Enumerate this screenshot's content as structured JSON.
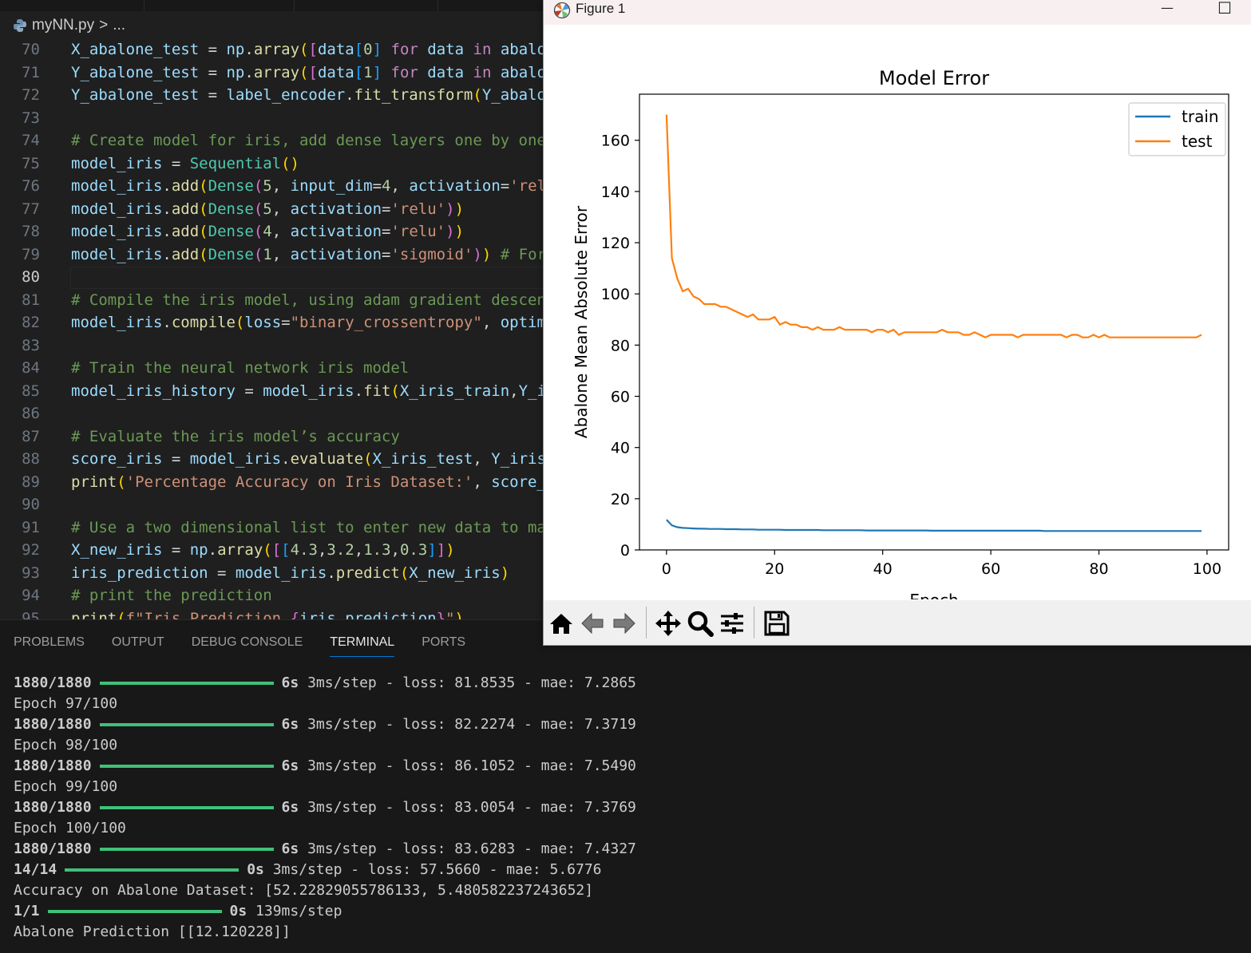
{
  "editor": {
    "breadcrumb": {
      "file": "myNN.py",
      "sep": ">",
      "rest": "..."
    },
    "current_line": "80",
    "lines": [
      {
        "n": "70",
        "t": [
          [
            "v",
            "X_abalone_test"
          ],
          [
            "o",
            " = "
          ],
          [
            "v",
            "np"
          ],
          [
            "o",
            "."
          ],
          [
            "f",
            "array"
          ],
          [
            "b1",
            "("
          ],
          [
            "b2",
            "["
          ],
          [
            "v",
            "data"
          ],
          [
            "b3",
            "["
          ],
          [
            "n",
            "0"
          ],
          [
            "b3",
            "]"
          ],
          [
            "o",
            " "
          ],
          [
            "k",
            "for"
          ],
          [
            "o",
            " "
          ],
          [
            "v",
            "data"
          ],
          [
            "o",
            " "
          ],
          [
            "k",
            "in"
          ],
          [
            "o",
            " "
          ],
          [
            "v",
            "abalone_test_data"
          ]
        ]
      },
      {
        "n": "71",
        "t": [
          [
            "v",
            "Y_abalone_test"
          ],
          [
            "o",
            " = "
          ],
          [
            "v",
            "np"
          ],
          [
            "o",
            "."
          ],
          [
            "f",
            "array"
          ],
          [
            "b1",
            "("
          ],
          [
            "b2",
            "["
          ],
          [
            "v",
            "data"
          ],
          [
            "b3",
            "["
          ],
          [
            "n",
            "1"
          ],
          [
            "b3",
            "]"
          ],
          [
            "o",
            " "
          ],
          [
            "k",
            "for"
          ],
          [
            "o",
            " "
          ],
          [
            "v",
            "data"
          ],
          [
            "o",
            " "
          ],
          [
            "k",
            "in"
          ],
          [
            "o",
            " "
          ],
          [
            "v",
            "abalone_test_data"
          ]
        ]
      },
      {
        "n": "72",
        "t": [
          [
            "v",
            "Y_abalone_test"
          ],
          [
            "o",
            " = "
          ],
          [
            "v",
            "label_encoder"
          ],
          [
            "o",
            "."
          ],
          [
            "f",
            "fit_transform"
          ],
          [
            "b1",
            "("
          ],
          [
            "v",
            "Y_abalone_test"
          ]
        ]
      },
      {
        "n": "73",
        "t": []
      },
      {
        "n": "74",
        "t": [
          [
            "c",
            "# Create model for iris, add dense layers one by one"
          ]
        ]
      },
      {
        "n": "75",
        "t": [
          [
            "v",
            "model_iris"
          ],
          [
            "o",
            " = "
          ],
          [
            "cl",
            "Sequential"
          ],
          [
            "b1",
            "()"
          ]
        ]
      },
      {
        "n": "76",
        "t": [
          [
            "v",
            "model_iris"
          ],
          [
            "o",
            "."
          ],
          [
            "f",
            "add"
          ],
          [
            "b1",
            "("
          ],
          [
            "cl",
            "Dense"
          ],
          [
            "b2",
            "("
          ],
          [
            "n",
            "5"
          ],
          [
            "o",
            ", "
          ],
          [
            "v",
            "input_dim"
          ],
          [
            "o",
            "="
          ],
          [
            "n",
            "4"
          ],
          [
            "o",
            ", "
          ],
          [
            "v",
            "activation"
          ],
          [
            "o",
            "="
          ],
          [
            "s",
            "'relu'"
          ]
        ]
      },
      {
        "n": "77",
        "t": [
          [
            "v",
            "model_iris"
          ],
          [
            "o",
            "."
          ],
          [
            "f",
            "add"
          ],
          [
            "b1",
            "("
          ],
          [
            "cl",
            "Dense"
          ],
          [
            "b2",
            "("
          ],
          [
            "n",
            "5"
          ],
          [
            "o",
            ", "
          ],
          [
            "v",
            "activation"
          ],
          [
            "o",
            "="
          ],
          [
            "s",
            "'relu'"
          ],
          [
            "b2",
            ")"
          ],
          [
            "b1",
            ")"
          ]
        ]
      },
      {
        "n": "78",
        "t": [
          [
            "v",
            "model_iris"
          ],
          [
            "o",
            "."
          ],
          [
            "f",
            "add"
          ],
          [
            "b1",
            "("
          ],
          [
            "cl",
            "Dense"
          ],
          [
            "b2",
            "("
          ],
          [
            "n",
            "4"
          ],
          [
            "o",
            ", "
          ],
          [
            "v",
            "activation"
          ],
          [
            "o",
            "="
          ],
          [
            "s",
            "'relu'"
          ],
          [
            "b2",
            ")"
          ],
          [
            "b1",
            ")"
          ]
        ]
      },
      {
        "n": "79",
        "t": [
          [
            "v",
            "model_iris"
          ],
          [
            "o",
            "."
          ],
          [
            "f",
            "add"
          ],
          [
            "b1",
            "("
          ],
          [
            "cl",
            "Dense"
          ],
          [
            "b2",
            "("
          ],
          [
            "n",
            "1"
          ],
          [
            "o",
            ", "
          ],
          [
            "v",
            "activation"
          ],
          [
            "o",
            "="
          ],
          [
            "s",
            "'sigmoid'"
          ],
          [
            "b2",
            ")"
          ],
          [
            "b1",
            ")"
          ],
          [
            "o",
            " "
          ],
          [
            "c",
            "# For binary output"
          ]
        ]
      },
      {
        "n": "80",
        "t": []
      },
      {
        "n": "81",
        "t": [
          [
            "c",
            "# Compile the iris model, using adam gradient descent"
          ]
        ]
      },
      {
        "n": "82",
        "t": [
          [
            "v",
            "model_iris"
          ],
          [
            "o",
            "."
          ],
          [
            "f",
            "compile"
          ],
          [
            "b1",
            "("
          ],
          [
            "v",
            "loss"
          ],
          [
            "o",
            "="
          ],
          [
            "s",
            "\"binary_crossentropy\""
          ],
          [
            "o",
            ", "
          ],
          [
            "v",
            "optimizer"
          ]
        ]
      },
      {
        "n": "83",
        "t": []
      },
      {
        "n": "84",
        "t": [
          [
            "c",
            "# Train the neural network iris model"
          ]
        ]
      },
      {
        "n": "85",
        "t": [
          [
            "v",
            "model_iris_history"
          ],
          [
            "o",
            " = "
          ],
          [
            "v",
            "model_iris"
          ],
          [
            "o",
            "."
          ],
          [
            "f",
            "fit"
          ],
          [
            "b1",
            "("
          ],
          [
            "v",
            "X_iris_train"
          ],
          [
            "o",
            ","
          ],
          [
            "v",
            "Y_iris_train"
          ]
        ]
      },
      {
        "n": "86",
        "t": []
      },
      {
        "n": "87",
        "t": [
          [
            "c",
            "# Evaluate the iris model’s accuracy"
          ]
        ]
      },
      {
        "n": "88",
        "t": [
          [
            "v",
            "score_iris"
          ],
          [
            "o",
            " = "
          ],
          [
            "v",
            "model_iris"
          ],
          [
            "o",
            "."
          ],
          [
            "f",
            "evaluate"
          ],
          [
            "b1",
            "("
          ],
          [
            "v",
            "X_iris_test"
          ],
          [
            "o",
            ", "
          ],
          [
            "v",
            "Y_iris_test"
          ]
        ]
      },
      {
        "n": "89",
        "t": [
          [
            "f",
            "print"
          ],
          [
            "b1",
            "("
          ],
          [
            "s",
            "'Percentage Accuracy on Iris Dataset:'"
          ],
          [
            "o",
            ", "
          ],
          [
            "v",
            "score_iris"
          ]
        ]
      },
      {
        "n": "90",
        "t": []
      },
      {
        "n": "91",
        "t": [
          [
            "c",
            "# Use a two dimensional list to enter new data to make"
          ]
        ]
      },
      {
        "n": "92",
        "t": [
          [
            "v",
            "X_new_iris"
          ],
          [
            "o",
            " = "
          ],
          [
            "v",
            "np"
          ],
          [
            "o",
            "."
          ],
          [
            "f",
            "array"
          ],
          [
            "b1",
            "("
          ],
          [
            "b2",
            "["
          ],
          [
            "b3",
            "["
          ],
          [
            "n",
            "4.3"
          ],
          [
            "o",
            ","
          ],
          [
            "n",
            "3.2"
          ],
          [
            "o",
            ","
          ],
          [
            "n",
            "1.3"
          ],
          [
            "o",
            ","
          ],
          [
            "n",
            "0.3"
          ],
          [
            "b3",
            "]"
          ],
          [
            "b2",
            "]"
          ],
          [
            "b1",
            ")"
          ]
        ]
      },
      {
        "n": "93",
        "t": [
          [
            "v",
            "iris_prediction"
          ],
          [
            "o",
            " = "
          ],
          [
            "v",
            "model_iris"
          ],
          [
            "o",
            "."
          ],
          [
            "f",
            "predict"
          ],
          [
            "b1",
            "("
          ],
          [
            "v",
            "X_new_iris"
          ],
          [
            "b1",
            ")"
          ]
        ]
      },
      {
        "n": "94",
        "t": [
          [
            "c",
            "# print the prediction"
          ]
        ]
      },
      {
        "n": "95",
        "t": [
          [
            "f",
            "print"
          ],
          [
            "b1",
            "("
          ],
          [
            "s",
            "f\"Iris Prediction "
          ],
          [
            "b2",
            "{"
          ],
          [
            "v",
            "iris_prediction"
          ],
          [
            "b2",
            "}"
          ],
          [
            "s",
            "\""
          ],
          [
            "b1",
            ")"
          ]
        ]
      }
    ]
  },
  "panel": {
    "tabs": [
      "PROBLEMS",
      "OUTPUT",
      "DEBUG CONSOLE",
      "TERMINAL",
      "PORTS"
    ],
    "active_tab": "TERMINAL"
  },
  "terminal": [
    {
      "type": "step",
      "count": "1880/1880",
      "bar": 1.0,
      "time": "6s",
      "rest": "3ms/step - loss: 81.8535 - mae: 7.2865"
    },
    {
      "type": "text",
      "text": "Epoch 97/100"
    },
    {
      "type": "step",
      "count": "1880/1880",
      "bar": 1.0,
      "time": "6s",
      "rest": "3ms/step - loss: 82.2274 - mae: 7.3719"
    },
    {
      "type": "text",
      "text": "Epoch 98/100"
    },
    {
      "type": "step",
      "count": "1880/1880",
      "bar": 1.0,
      "time": "6s",
      "rest": "3ms/step - loss: 86.1052 - mae: 7.5490"
    },
    {
      "type": "text",
      "text": "Epoch 99/100"
    },
    {
      "type": "step",
      "count": "1880/1880",
      "bar": 1.0,
      "time": "6s",
      "rest": "3ms/step - loss: 83.0054 - mae: 7.3769"
    },
    {
      "type": "text",
      "text": "Epoch 100/100"
    },
    {
      "type": "step",
      "count": "1880/1880",
      "bar": 1.0,
      "time": "6s",
      "rest": "3ms/step - loss: 83.6283 - mae: 7.4327"
    },
    {
      "type": "step",
      "count": "14/14",
      "bar": 1.0,
      "time": "0s",
      "rest": "3ms/step - loss: 57.5660 - mae: 5.6776"
    },
    {
      "type": "text",
      "text": "Accuracy on Abalone Dataset: [52.22829055786133, 5.480582237243652]"
    },
    {
      "type": "step",
      "count": "1/1",
      "bar": 1.0,
      "time": "0s",
      "rest": "139ms/step"
    },
    {
      "type": "text",
      "text": "Abalone Prediction [[12.120228]]"
    }
  ],
  "figure": {
    "window_title": "Figure 1",
    "minimize": "—",
    "maximize": "☐",
    "toolbar": [
      "home-icon",
      "back-icon",
      "forward-icon",
      "pan-icon",
      "zoom-icon",
      "configure-icon",
      "save-icon"
    ]
  },
  "chart_data": {
    "type": "line",
    "title": "Model Error",
    "xlabel": "Epoch",
    "ylabel": "Abalone Mean Absolute Error",
    "xlim": [
      -5,
      104
    ],
    "ylim": [
      0,
      178
    ],
    "xticks": [
      0,
      20,
      40,
      60,
      80,
      100
    ],
    "yticks": [
      0,
      20,
      40,
      60,
      80,
      100,
      120,
      140,
      160
    ],
    "legend": "top-right",
    "grid": false,
    "series": [
      {
        "name": "train",
        "color": "#1f77b4",
        "values": [
          11.8,
          9.6,
          8.9,
          8.6,
          8.5,
          8.4,
          8.3,
          8.3,
          8.2,
          8.2,
          8.2,
          8.1,
          8.1,
          8.1,
          8.0,
          8.0,
          8.0,
          7.9,
          7.9,
          7.9,
          7.9,
          7.9,
          7.8,
          7.8,
          7.8,
          7.8,
          7.8,
          7.8,
          7.8,
          7.7,
          7.7,
          7.7,
          7.7,
          7.7,
          7.7,
          7.7,
          7.7,
          7.6,
          7.6,
          7.6,
          7.6,
          7.6,
          7.6,
          7.6,
          7.6,
          7.6,
          7.6,
          7.6,
          7.6,
          7.5,
          7.5,
          7.5,
          7.5,
          7.5,
          7.5,
          7.5,
          7.5,
          7.5,
          7.5,
          7.5,
          7.5,
          7.5,
          7.5,
          7.5,
          7.5,
          7.5,
          7.5,
          7.5,
          7.5,
          7.5,
          7.4,
          7.4,
          7.4,
          7.4,
          7.4,
          7.4,
          7.4,
          7.4,
          7.4,
          7.4,
          7.4,
          7.4,
          7.4,
          7.4,
          7.4,
          7.4,
          7.4,
          7.4,
          7.4,
          7.4,
          7.4,
          7.4,
          7.4,
          7.4,
          7.4,
          7.4,
          7.4,
          7.4,
          7.4,
          7.4
        ]
      },
      {
        "name": "test",
        "color": "#ff7f0e",
        "values": [
          170,
          114,
          106,
          101,
          102,
          99,
          98,
          96,
          96,
          96,
          95,
          95,
          94,
          93,
          92,
          91,
          92,
          90,
          90,
          90,
          91,
          88,
          89,
          88,
          88,
          87,
          87,
          86,
          87,
          86,
          86,
          86,
          87,
          86,
          86,
          86,
          86,
          86,
          85,
          86,
          86,
          85,
          86,
          84,
          85,
          85,
          85,
          85,
          85,
          85,
          85,
          86,
          85,
          85,
          85,
          84,
          84,
          85,
          84,
          83,
          84,
          84,
          84,
          84,
          84,
          83,
          84,
          84,
          84,
          84,
          84,
          84,
          84,
          84,
          83,
          84,
          84,
          83,
          83,
          84,
          83,
          84,
          83,
          83,
          83,
          83,
          83,
          83,
          83,
          83,
          83,
          83,
          83,
          83,
          83,
          83,
          83,
          83,
          83,
          84
        ]
      }
    ]
  }
}
